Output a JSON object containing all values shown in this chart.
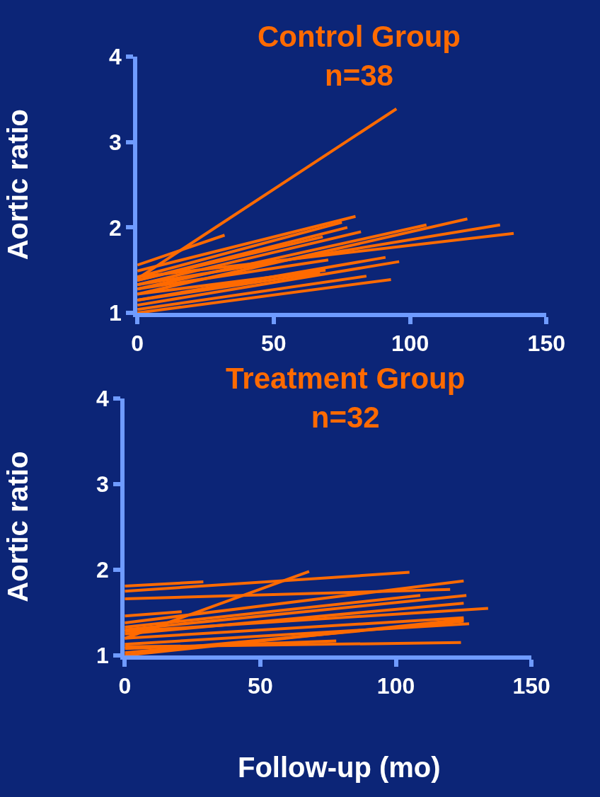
{
  "chart_data": [
    {
      "type": "line",
      "title": "Control Group",
      "subtitle": "n=38",
      "ylabel": "Aortic ratio",
      "xlim": [
        0,
        150
      ],
      "xticks": [
        0,
        50,
        100,
        150
      ],
      "ylim": [
        1,
        4
      ],
      "yticks": [
        1,
        2,
        3,
        4
      ],
      "grid": false,
      "marker": "none",
      "line_style": "solid",
      "series": [
        {
          "color": "#ff6a00",
          "x": [
            0,
            95
          ],
          "values": [
            1.4,
            3.39
          ]
        },
        {
          "color": "#ff6a00",
          "x": [
            0,
            32
          ],
          "values": [
            1.56,
            1.91
          ]
        },
        {
          "color": "#ff6a00",
          "x": [
            0,
            80
          ],
          "values": [
            1.49,
            2.13
          ]
        },
        {
          "color": "#ff6a00",
          "x": [
            0,
            75
          ],
          "values": [
            1.42,
            2.06
          ]
        },
        {
          "color": "#ff6a00",
          "x": [
            0,
            77
          ],
          "values": [
            1.38,
            2.0
          ]
        },
        {
          "color": "#ff6a00",
          "x": [
            0,
            82
          ],
          "values": [
            1.33,
            1.95
          ]
        },
        {
          "color": "#ff6a00",
          "x": [
            0,
            106
          ],
          "values": [
            1.28,
            2.03
          ]
        },
        {
          "color": "#ff6a00",
          "x": [
            0,
            121
          ],
          "values": [
            1.22,
            2.1
          ]
        },
        {
          "color": "#ff6a00",
          "x": [
            0,
            133
          ],
          "values": [
            1.33,
            2.03
          ]
        },
        {
          "color": "#ff6a00",
          "x": [
            0,
            138
          ],
          "values": [
            1.42,
            1.93
          ]
        },
        {
          "color": "#ff6a00",
          "x": [
            0,
            91
          ],
          "values": [
            1.15,
            1.65
          ]
        },
        {
          "color": "#ff6a00",
          "x": [
            0,
            96
          ],
          "values": [
            1.09,
            1.6
          ]
        },
        {
          "color": "#ff6a00",
          "x": [
            0,
            69
          ],
          "values": [
            1.22,
            1.5
          ]
        },
        {
          "color": "#ff6a00",
          "x": [
            0,
            84
          ],
          "values": [
            1.04,
            1.43
          ]
        },
        {
          "color": "#ff6a00",
          "x": [
            0,
            93
          ],
          "values": [
            1.0,
            1.39
          ]
        },
        {
          "color": "#ff6a00",
          "x": [
            0,
            70
          ],
          "values": [
            1.28,
            1.62
          ]
        },
        {
          "color": "#ff6a00",
          "x": [
            0,
            67
          ],
          "values": [
            1.15,
            1.47
          ]
        },
        {
          "color": "#ff6a00",
          "x": [
            0,
            68
          ],
          "values": [
            1.38,
            1.89
          ]
        }
      ]
    },
    {
      "type": "line",
      "title": "Treatment Group",
      "subtitle": "n=32",
      "xlabel": "Follow-up (mo)",
      "ylabel": "Aortic ratio",
      "xlim": [
        0,
        150
      ],
      "xticks": [
        0,
        50,
        100,
        150
      ],
      "ylim": [
        1,
        4
      ],
      "yticks": [
        1,
        2,
        3,
        4
      ],
      "grid": false,
      "marker": "none",
      "line_style": "solid",
      "series": [
        {
          "color": "#ff6a00",
          "x": [
            0,
            68
          ],
          "values": [
            1.2,
            1.98
          ]
        },
        {
          "color": "#ff6a00",
          "x": [
            0,
            29
          ],
          "values": [
            1.81,
            1.86
          ]
        },
        {
          "color": "#ff6a00",
          "x": [
            0,
            105
          ],
          "values": [
            1.75,
            1.97
          ]
        },
        {
          "color": "#ff6a00",
          "x": [
            0,
            120
          ],
          "values": [
            1.66,
            1.77
          ]
        },
        {
          "color": "#ff6a00",
          "x": [
            0,
            21
          ],
          "values": [
            1.46,
            1.51
          ]
        },
        {
          "color": "#ff6a00",
          "x": [
            0,
            125
          ],
          "values": [
            1.38,
            1.87
          ]
        },
        {
          "color": "#ff6a00",
          "x": [
            0,
            109
          ],
          "values": [
            1.33,
            1.7
          ]
        },
        {
          "color": "#ff6a00",
          "x": [
            0,
            126
          ],
          "values": [
            1.3,
            1.7
          ]
        },
        {
          "color": "#ff6a00",
          "x": [
            0,
            125
          ],
          "values": [
            1.25,
            1.61
          ]
        },
        {
          "color": "#ff6a00",
          "x": [
            0,
            134
          ],
          "values": [
            1.28,
            1.55
          ]
        },
        {
          "color": "#ff6a00",
          "x": [
            0,
            125
          ],
          "values": [
            1.2,
            1.44
          ]
        },
        {
          "color": "#ff6a00",
          "x": [
            0,
            127
          ],
          "values": [
            1.13,
            1.37
          ]
        },
        {
          "color": "#ff6a00",
          "x": [
            0,
            124
          ],
          "values": [
            1.1,
            1.15
          ]
        },
        {
          "color": "#ff6a00",
          "x": [
            0,
            78
          ],
          "values": [
            1.08,
            1.17
          ]
        },
        {
          "color": "#ff6a00",
          "x": [
            0,
            125
          ],
          "values": [
            1.03,
            1.4
          ]
        },
        {
          "color": "#ff6a00",
          "x": [
            0,
            125
          ],
          "values": [
            1.0,
            1.42
          ]
        }
      ]
    }
  ]
}
